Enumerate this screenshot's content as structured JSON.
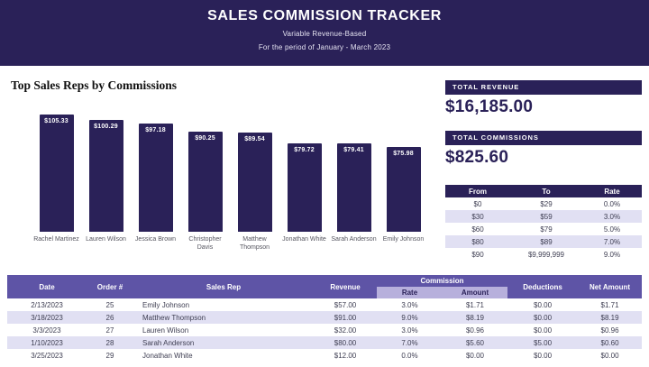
{
  "header": {
    "title": "SALES COMMISSION TRACKER",
    "subtitle": "Variable Revenue-Based",
    "period": "For the period of January - March 2023"
  },
  "chart_data": {
    "type": "bar",
    "title": "Top Sales Reps by Commissions",
    "categories": [
      "Rachel Martinez",
      "Lauren Wilson",
      "Jessica Brown",
      "Christopher Davis",
      "Matthew Thompson",
      "Jonathan White",
      "Sarah Anderson",
      "Emily Johnson"
    ],
    "values": [
      105.33,
      100.29,
      97.18,
      90.25,
      89.54,
      79.72,
      79.41,
      75.98
    ],
    "value_labels": [
      "$105.33",
      "$100.29",
      "$97.18",
      "$90.25",
      "$89.54",
      "$79.72",
      "$79.41",
      "$75.98"
    ],
    "xlabel": "",
    "ylabel": "",
    "ylim": [
      0,
      110
    ],
    "grid": false,
    "legend": false
  },
  "summary": {
    "total_revenue": {
      "label": "TOTAL REVENUE",
      "value": "$16,185.00"
    },
    "total_commissions": {
      "label": "TOTAL COMMISSIONS",
      "value": "$825.60"
    }
  },
  "rate_table": {
    "headers": [
      "From",
      "To",
      "Rate"
    ],
    "rows": [
      [
        "$0",
        "$29",
        "0.0%"
      ],
      [
        "$30",
        "$59",
        "3.0%"
      ],
      [
        "$60",
        "$79",
        "5.0%"
      ],
      [
        "$80",
        "$89",
        "7.0%"
      ],
      [
        "$90",
        "$9,999,999",
        "9.0%"
      ]
    ]
  },
  "orders_table": {
    "headers": {
      "date": "Date",
      "order": "Order #",
      "sales_rep": "Sales Rep",
      "revenue": "Revenue",
      "commission_group": "Commission",
      "rate": "Rate",
      "amount": "Amount",
      "deductions": "Deductions",
      "net": "Net Amount"
    },
    "rows": [
      [
        "2/13/2023",
        "25",
        "Emily Johnson",
        "$57.00",
        "3.0%",
        "$1.71",
        "$0.00",
        "$1.71"
      ],
      [
        "3/18/2023",
        "26",
        "Matthew Thompson",
        "$91.00",
        "9.0%",
        "$8.19",
        "$0.00",
        "$8.19"
      ],
      [
        "3/3/2023",
        "27",
        "Lauren Wilson",
        "$32.00",
        "3.0%",
        "$0.96",
        "$0.00",
        "$0.96"
      ],
      [
        "1/10/2023",
        "28",
        "Sarah Anderson",
        "$80.00",
        "7.0%",
        "$5.60",
        "$5.00",
        "$0.60"
      ],
      [
        "3/25/2023",
        "29",
        "Jonathan White",
        "$12.00",
        "0.0%",
        "$0.00",
        "$0.00",
        "$0.00"
      ]
    ]
  },
  "colors": {
    "navy": "#2a2158",
    "purple_header": "#5e54a6",
    "lavender_band": "#b7b0dc",
    "row_alt": "#e1e0f3"
  }
}
